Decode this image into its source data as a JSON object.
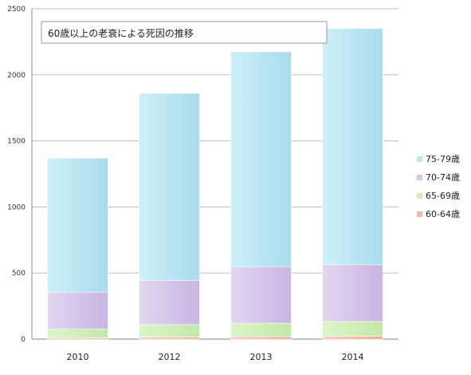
{
  "chart_data": {
    "type": "bar",
    "stacked": true,
    "title": "60歳以上の老衰による死因の推移",
    "categories": [
      "2010",
      "2012",
      "2013",
      "2014"
    ],
    "ylim": [
      0,
      2500
    ],
    "yticks": [
      "0",
      "500",
      "1000",
      "1500",
      "2000",
      "2500"
    ],
    "grid": true,
    "legend_position": "right",
    "series": [
      {
        "name": "60-64歳",
        "color": "#f4b8a8",
        "values": [
          8,
          15,
          18,
          20
        ]
      },
      {
        "name": "65-69歳",
        "color": "#cdeeb6",
        "values": [
          67,
          95,
          102,
          113
        ]
      },
      {
        "name": "70-74歳",
        "color": "#d6c6ea",
        "values": [
          280,
          335,
          428,
          430
        ]
      },
      {
        "name": "75-79歳",
        "color": "#bce8f2",
        "values": [
          1015,
          1415,
          1627,
          1787
        ]
      }
    ]
  }
}
